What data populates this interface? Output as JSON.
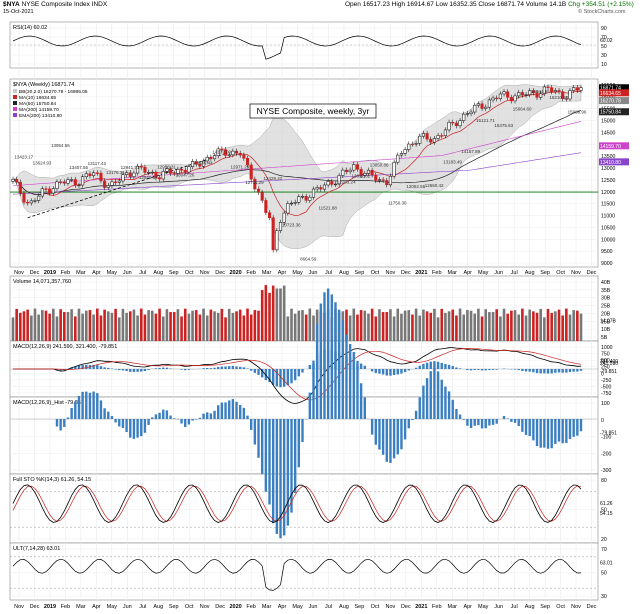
{
  "header": {
    "symbol": "$NYA",
    "name": "NYSE Composite Index",
    "exchange": "INDX",
    "date": "15-Oct-2021",
    "open": "Open 16517.23",
    "high": "High 16914.67",
    "low": "Low 16352.35",
    "close": "Close 16871.74",
    "volume": "Volume 14.1B",
    "chg": "Chg +354.51 (+2.15%)",
    "copyright": "© StockCharts.com"
  },
  "annotation": "NYSE Composite, weekly, 3yr",
  "colors": {
    "up": "#000000",
    "down": "#cc2222",
    "bollinger_fill": "#c8c8c8",
    "ma10": "#cc2222",
    "ma50": "#222222",
    "ma200": "#cc44cc",
    "ema200": "#8844cc",
    "green_line": "#007700",
    "macd_hist": "#3a7fc2"
  },
  "panels": {
    "rsi": {
      "legend": "RSI(14) 60.02",
      "ticks": [
        "90",
        "70",
        "50",
        "30",
        "10"
      ],
      "value_tag": "60.02"
    },
    "price": {
      "legend_title": "$NYA (Weekly) 16871.74",
      "legend_items": [
        "BB(20,2.0) 16270.78 - 16985.05",
        "MA(10) 16634.65",
        "MA(50) 15750.84",
        "MA(200) 14159.70",
        "EMA(200) 13410.80"
      ],
      "ticks": [
        "16500",
        "16000",
        "15500",
        "15000",
        "14500",
        "14000",
        "13500",
        "13000",
        "12500",
        "12000",
        "11500",
        "11000",
        "10500",
        "10000",
        "9500",
        "9000"
      ],
      "value_tags": [
        "16871.74",
        "16634.65",
        "16270.78",
        "15750.84",
        "14159.70",
        "13410.80"
      ],
      "callouts": [
        "13423.17",
        "13624.93",
        "13954.56",
        "13407.55",
        "13117.43",
        "13176.31",
        "12941.51",
        "12945.52",
        "12958.31",
        "13047.26",
        "13145.44",
        "14137.00",
        "12971.29",
        "12711.29",
        "12429.42",
        "10723.36",
        "8664.59",
        "11521.88",
        "12263.24",
        "13012.82",
        "13050.86",
        "11750.30",
        "12052.55",
        "12560.42",
        "13183.49",
        "14157.89",
        "15121.71",
        "15375.63",
        "15664.60",
        "16944.65",
        "16210.30",
        "15988.96"
      ]
    },
    "volume": {
      "legend": "Volume 14,071,357,760",
      "ticks": [
        "40B",
        "35B",
        "30B",
        "25B",
        "20B",
        "15B",
        "10B",
        "5B"
      ],
      "value_tag": "14.07B"
    },
    "macd": {
      "legend": "MACD(12,26,9) 241.590, 321.400, -79.851",
      "ticks": [
        "1000",
        "750",
        "500",
        "250",
        "0",
        "-250",
        "-500",
        "-750"
      ],
      "value_tags": [
        "321.400",
        "241.590",
        "-79.851"
      ]
    },
    "macd_hist": {
      "legend": "MACD(12,26,9)_Hist -79.851",
      "ticks": [
        "100",
        "0",
        "-100",
        "-200",
        "-300"
      ],
      "value_tag": "-79.851"
    },
    "sto": {
      "legend": "Full STO %K(14,3) 61.26, 54.15",
      "ticks": [
        "80",
        "50",
        "20"
      ],
      "value_tags": [
        "61.26",
        "54.15"
      ]
    },
    "ulti": {
      "legend": "ULT(7,14,28) 63.01",
      "ticks": [
        "70",
        "50",
        "30"
      ],
      "value_tag": "63.01"
    }
  },
  "x_axis": {
    "labels": [
      "Nov",
      "Dec",
      "2019",
      "Feb",
      "Mar",
      "Apr",
      "May",
      "Jun",
      "Jul",
      "Aug",
      "Sep",
      "Oct",
      "Nov",
      "Dec",
      "2020",
      "Feb",
      "Mar",
      "Apr",
      "May",
      "Jun",
      "Jul",
      "Aug",
      "Sep",
      "Oct",
      "Nov",
      "Dec",
      "2021",
      "Feb",
      "Mar",
      "Apr",
      "May",
      "Jun",
      "Jul",
      "Aug",
      "Sep",
      "Oct",
      "Nov",
      "Dec"
    ]
  },
  "chart_data": {
    "type": "candlestick",
    "title": "NYSE Composite, weekly, 3yr",
    "x": [
      "2018-11",
      "2018-12",
      "2019-01",
      "2019-02",
      "2019-03",
      "2019-04",
      "2019-05",
      "2019-06",
      "2019-07",
      "2019-08",
      "2019-09",
      "2019-10",
      "2019-11",
      "2019-12",
      "2020-01",
      "2020-02",
      "2020-03",
      "2020-04",
      "2020-05",
      "2020-06",
      "2020-07",
      "2020-08",
      "2020-09",
      "2020-10",
      "2020-11",
      "2020-12",
      "2021-01",
      "2021-02",
      "2021-03",
      "2021-04",
      "2021-05",
      "2021-06",
      "2021-07",
      "2021-08",
      "2021-09",
      "2021-10"
    ],
    "close_monthly_approx": [
      12500,
      11400,
      12100,
      12450,
      12500,
      12900,
      12200,
      12900,
      13050,
      12750,
      13000,
      13150,
      13600,
      13900,
      13800,
      12200,
      10300,
      11400,
      11800,
      12200,
      12650,
      13200,
      12750,
      12450,
      14000,
      14500,
      14500,
      15100,
      15700,
      16100,
      16500,
      16500,
      16600,
      16800,
      16500,
      16871.74
    ],
    "ylim": [
      8500,
      17000
    ],
    "last": {
      "close": 16871.74,
      "ma10": 16634.65,
      "ma50": 15750.84,
      "ma200": 14159.7,
      "ema200": 13410.8,
      "bb_lower": 16270.78,
      "bb_upper": 16985.05
    },
    "low_2020_03": 8664.59,
    "indicators": {
      "rsi14": 60.02,
      "volume": 14071357760,
      "macd": 241.59,
      "macd_signal": 321.4,
      "macd_hist": -79.851,
      "sto_k": 61.26,
      "sto_d": 54.15,
      "ult": 63.01
    },
    "series": [
      {
        "name": "MA(10)",
        "color": "#cc2222"
      },
      {
        "name": "MA(50)",
        "color": "#222222"
      },
      {
        "name": "MA(200)",
        "color": "#cc44cc"
      },
      {
        "name": "EMA(200)",
        "color": "#8844cc"
      }
    ]
  }
}
